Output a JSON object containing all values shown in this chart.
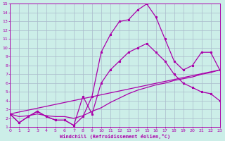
{
  "xlabel": "Windchill (Refroidissement éolien,°C)",
  "xlim": [
    0,
    23
  ],
  "ylim": [
    1,
    15
  ],
  "xticks": [
    0,
    1,
    2,
    3,
    4,
    5,
    6,
    7,
    8,
    9,
    10,
    11,
    12,
    13,
    14,
    15,
    16,
    17,
    18,
    19,
    20,
    21,
    22,
    23
  ],
  "yticks": [
    1,
    2,
    3,
    4,
    5,
    6,
    7,
    8,
    9,
    10,
    11,
    12,
    13,
    14,
    15
  ],
  "bg_color": "#cceee8",
  "grid_color": "#aabbcc",
  "line_color": "#aa00aa",
  "line1_x": [
    0,
    1,
    2,
    3,
    4,
    5,
    6,
    7,
    8,
    9,
    10,
    11,
    12,
    13,
    14,
    15,
    16,
    17,
    18,
    19,
    20,
    21,
    22,
    23
  ],
  "line1_y": [
    2.5,
    1.5,
    2.2,
    2.8,
    2.2,
    1.8,
    1.8,
    1.2,
    2.2,
    4.5,
    9.5,
    11.5,
    13.0,
    13.2,
    14.3,
    15.0,
    13.5,
    11.0,
    8.5,
    7.5,
    8.0,
    9.5,
    9.5,
    7.5
  ],
  "line2_x": [
    0,
    1,
    2,
    3,
    4,
    5,
    6,
    7,
    8,
    9,
    10,
    11,
    12,
    13,
    14,
    15,
    16,
    17,
    18,
    19,
    20,
    21,
    22,
    23
  ],
  "line2_y": [
    2.5,
    1.5,
    2.2,
    2.8,
    2.2,
    1.8,
    1.8,
    1.2,
    4.5,
    2.5,
    6.0,
    7.5,
    8.5,
    9.5,
    10.0,
    10.5,
    9.5,
    8.5,
    7.0,
    6.0,
    5.5,
    5.0,
    4.8,
    4.0
  ],
  "line3_x": [
    0,
    1,
    2,
    3,
    4,
    5,
    6,
    7,
    8,
    9,
    10,
    11,
    12,
    13,
    14,
    15,
    16,
    17,
    18,
    19,
    20,
    21,
    22,
    23
  ],
  "line3_y": [
    2.5,
    2.2,
    2.3,
    2.5,
    2.3,
    2.2,
    2.2,
    2.0,
    2.3,
    2.8,
    3.2,
    3.8,
    4.3,
    4.8,
    5.2,
    5.5,
    5.8,
    6.0,
    6.3,
    6.5,
    6.7,
    7.0,
    7.2,
    7.5
  ],
  "line4_x": [
    0,
    23
  ],
  "line4_y": [
    2.5,
    7.5
  ]
}
